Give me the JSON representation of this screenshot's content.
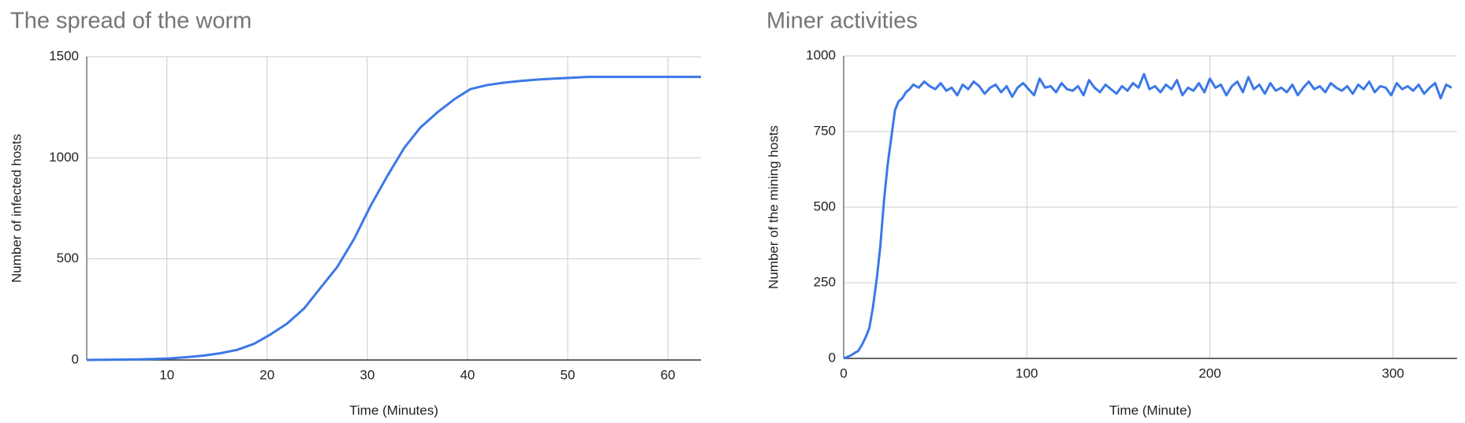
{
  "chart_data": [
    {
      "type": "line",
      "title": "The spread of the worm",
      "x_label": "Time (Minutes)",
      "y_label": "Number of infected hosts",
      "x": [
        2,
        3.7,
        5.3,
        7,
        8.7,
        10.3,
        12,
        13.7,
        15.3,
        17,
        18.7,
        20.3,
        22,
        23.7,
        25.3,
        27,
        28.7,
        30.3,
        32,
        33.7,
        35.3,
        37,
        38.7,
        40.3,
        42,
        43.7,
        45.3,
        47,
        48.7,
        50.3,
        52,
        53.7,
        55.3,
        57,
        58.7,
        60.3,
        62,
        63.3
      ],
      "series": [
        {
          "name": "Infected hosts",
          "color": "#3b78e7",
          "values": [
            0,
            1,
            2,
            3,
            5,
            8,
            14,
            22,
            33,
            50,
            80,
            125,
            180,
            255,
            355,
            460,
            600,
            760,
            910,
            1050,
            1150,
            1225,
            1290,
            1340,
            1360,
            1372,
            1380,
            1387,
            1392,
            1396,
            1400,
            1400,
            1400,
            1400,
            1400,
            1400,
            1400,
            1400
          ]
        }
      ],
      "xlim": [
        2,
        63.3
      ],
      "xticks": [
        10,
        20,
        30,
        40,
        50,
        60
      ],
      "ylim": [
        0,
        1500
      ],
      "yticks": [
        0,
        500,
        1000,
        1500
      ],
      "grid": true
    },
    {
      "type": "line",
      "title": "Miner activities",
      "x_label": "Time (Minute)",
      "y_label": "Number of the mining hosts",
      "x": [
        0,
        2,
        4,
        6,
        8,
        10,
        12,
        14,
        16,
        18,
        20,
        22,
        24,
        26,
        28,
        30,
        32,
        34,
        36,
        38,
        41,
        44,
        47,
        50,
        53,
        56,
        59,
        62,
        65,
        68,
        71,
        74,
        77,
        80,
        83,
        86,
        89,
        92,
        95,
        98,
        101,
        104,
        107,
        110,
        113,
        116,
        119,
        122,
        125,
        128,
        131,
        134,
        137,
        140,
        143,
        146,
        149,
        152,
        155,
        158,
        161,
        164,
        167,
        170,
        173,
        176,
        179,
        182,
        185,
        188,
        191,
        194,
        197,
        200,
        203,
        206,
        209,
        212,
        215,
        218,
        221,
        224,
        227,
        230,
        233,
        236,
        239,
        242,
        245,
        248,
        251,
        254,
        257,
        260,
        263,
        266,
        269,
        272,
        275,
        278,
        281,
        284,
        287,
        290,
        293,
        296,
        299,
        302,
        305,
        308,
        311,
        314,
        317,
        320,
        323,
        326,
        329,
        332
      ],
      "series": [
        {
          "name": "Mining hosts",
          "color": "#3b78e7",
          "values": [
            0,
            5,
            10,
            18,
            25,
            45,
            70,
            100,
            170,
            260,
            370,
            520,
            640,
            730,
            820,
            850,
            860,
            880,
            890,
            905,
            895,
            915,
            900,
            890,
            910,
            885,
            895,
            870,
            905,
            890,
            915,
            900,
            875,
            895,
            905,
            880,
            900,
            865,
            895,
            910,
            890,
            870,
            925,
            895,
            900,
            880,
            910,
            890,
            885,
            900,
            870,
            920,
            895,
            880,
            905,
            890,
            875,
            900,
            885,
            910,
            895,
            940,
            890,
            900,
            880,
            905,
            890,
            920,
            870,
            895,
            885,
            910,
            880,
            925,
            895,
            905,
            870,
            900,
            915,
            880,
            930,
            890,
            905,
            875,
            910,
            885,
            895,
            880,
            905,
            870,
            895,
            915,
            890,
            900,
            880,
            910,
            895,
            885,
            900,
            875,
            905,
            890,
            915,
            880,
            900,
            895,
            870,
            910,
            890,
            900,
            885,
            905,
            875,
            895,
            910,
            860,
            905,
            895
          ]
        }
      ],
      "xlim": [
        0,
        335
      ],
      "xticks": [
        0,
        100,
        200,
        300
      ],
      "ylim": [
        0,
        1000
      ],
      "yticks": [
        0,
        250,
        500,
        750,
        1000
      ],
      "grid": true
    }
  ]
}
